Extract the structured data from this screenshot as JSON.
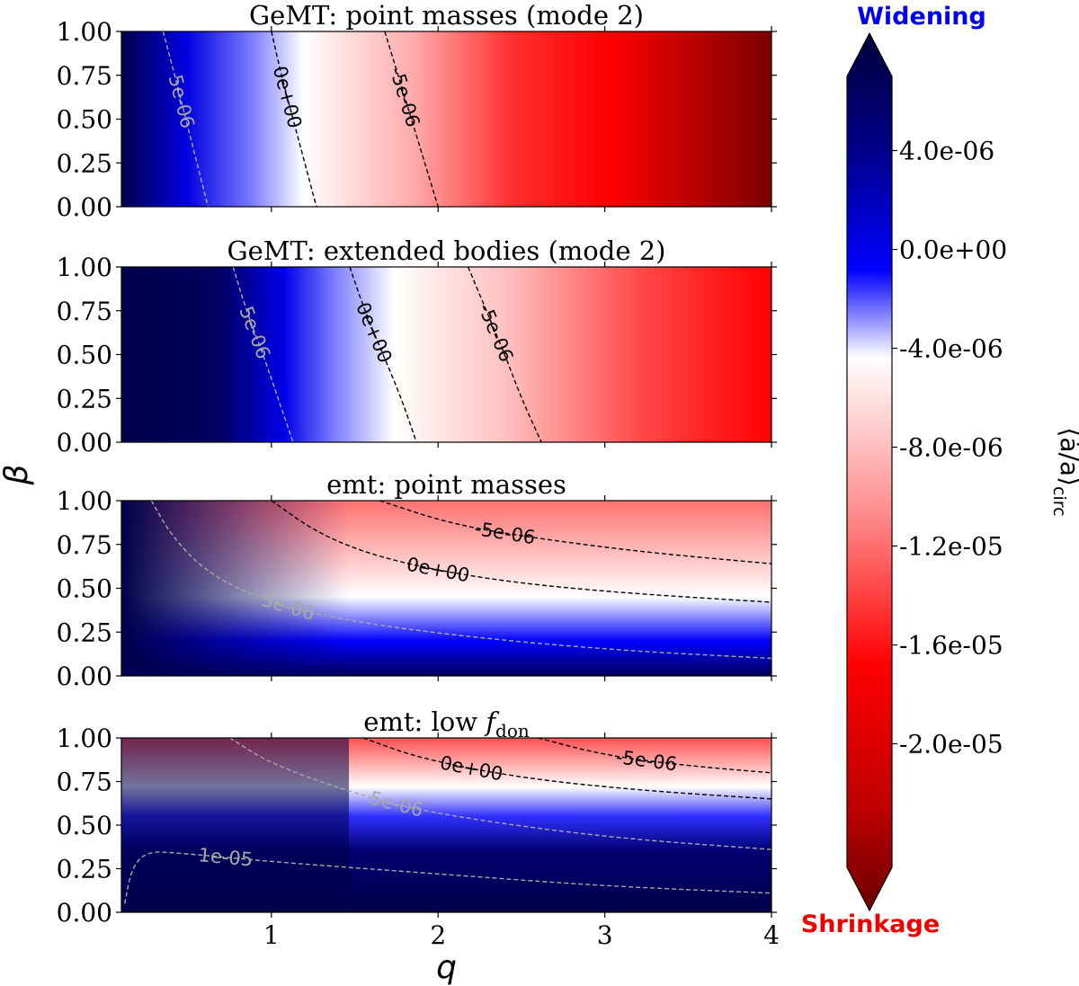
{
  "figure": {
    "annotations": {
      "top": "Widening",
      "bottom": "Shrinkage"
    },
    "colors": {
      "widening": "#0000ee",
      "shrinkage": "#ee0000",
      "contour_zero": "#000000",
      "contour_positive": "#a8a8a8"
    }
  },
  "chart_data": [
    {
      "type": "heatmap",
      "title": "GeMT: point masses (mode 2)",
      "xlim": [
        0.1,
        4
      ],
      "ylim": [
        0,
        1
      ],
      "yticks": [
        "0.00",
        "0.25",
        "0.50",
        "0.75",
        "1.00"
      ],
      "xticks": [],
      "contours": [
        {
          "level": "5e-06",
          "points": [
            [
              0.35,
              1.0
            ],
            [
              0.42,
              0.75
            ],
            [
              0.5,
              0.45
            ],
            [
              0.58,
              0.15
            ],
            [
              0.62,
              0.0
            ]
          ]
        },
        {
          "level": "0e+00",
          "points": [
            [
              1.0,
              1.0
            ],
            [
              1.06,
              0.75
            ],
            [
              1.13,
              0.5
            ],
            [
              1.2,
              0.25
            ],
            [
              1.27,
              0.0
            ]
          ]
        },
        {
          "level": "-5e-06",
          "points": [
            [
              1.68,
              1.0
            ],
            [
              1.76,
              0.75
            ],
            [
              1.84,
              0.5
            ],
            [
              1.92,
              0.25
            ],
            [
              2.0,
              0.0
            ]
          ]
        }
      ]
    },
    {
      "type": "heatmap",
      "title": "GeMT: extended bodies (mode 2)",
      "xlim": [
        0.1,
        4
      ],
      "ylim": [
        0,
        1
      ],
      "yticks": [
        "0.00",
        "0.25",
        "0.50",
        "0.75",
        "1.00"
      ],
      "xticks": [],
      "contours": [
        {
          "level": "5e-06",
          "points": [
            [
              0.77,
              1.0
            ],
            [
              0.85,
              0.75
            ],
            [
              0.95,
              0.5
            ],
            [
              1.04,
              0.25
            ],
            [
              1.13,
              0.0
            ]
          ]
        },
        {
          "level": "0e+00",
          "points": [
            [
              1.47,
              1.0
            ],
            [
              1.56,
              0.75
            ],
            [
              1.67,
              0.5
            ],
            [
              1.78,
              0.25
            ],
            [
              1.87,
              0.0
            ]
          ]
        },
        {
          "level": "-5e-06",
          "points": [
            [
              2.18,
              1.0
            ],
            [
              2.29,
              0.75
            ],
            [
              2.4,
              0.5
            ],
            [
              2.5,
              0.25
            ],
            [
              2.62,
              0.0
            ]
          ]
        }
      ]
    },
    {
      "type": "heatmap",
      "title": "emt: point masses",
      "xlim": [
        0.1,
        4
      ],
      "ylim": [
        0,
        1
      ],
      "yticks": [
        "0.00",
        "0.25",
        "0.50",
        "0.75",
        "1.00"
      ],
      "xticks": [],
      "contours": [
        {
          "level": "5e-06",
          "points": [
            [
              0.28,
              1.0
            ],
            [
              0.4,
              0.8
            ],
            [
              0.6,
              0.6
            ],
            [
              0.9,
              0.45
            ],
            [
              1.3,
              0.34
            ],
            [
              2.0,
              0.24
            ],
            [
              3.0,
              0.15
            ],
            [
              4.0,
              0.1
            ]
          ]
        },
        {
          "level": "0e+00",
          "points": [
            [
              1.0,
              1.0
            ],
            [
              1.3,
              0.8
            ],
            [
              1.7,
              0.66
            ],
            [
              2.3,
              0.55
            ],
            [
              3.0,
              0.48
            ],
            [
              4.0,
              0.42
            ]
          ]
        },
        {
          "level": "-5e-06",
          "points": [
            [
              1.65,
              1.0
            ],
            [
              2.1,
              0.86
            ],
            [
              2.7,
              0.77
            ],
            [
              3.3,
              0.7
            ],
            [
              4.0,
              0.64
            ]
          ]
        }
      ]
    },
    {
      "type": "heatmap",
      "title_main": "emt: low ",
      "title_var": "f",
      "title_sub": "don",
      "xlim": [
        0.1,
        4
      ],
      "ylim": [
        0,
        1
      ],
      "yticks": [
        "0.00",
        "0.25",
        "0.50",
        "0.75",
        "1.00"
      ],
      "xticks": [
        "1",
        "2",
        "3",
        "4"
      ],
      "xlabel": "q",
      "contours": [
        {
          "level": "1e-05",
          "points": [
            [
              0.12,
              0.05
            ],
            [
              0.16,
              0.25
            ],
            [
              0.25,
              0.35
            ],
            [
              0.45,
              0.34
            ],
            [
              1.0,
              0.29
            ],
            [
              2.0,
              0.22
            ],
            [
              3.0,
              0.15
            ],
            [
              4.0,
              0.11
            ]
          ]
        },
        {
          "level": "5e-06",
          "points": [
            [
              0.75,
              1.0
            ],
            [
              1.0,
              0.85
            ],
            [
              1.5,
              0.68
            ],
            [
              2.0,
              0.56
            ],
            [
              3.0,
              0.43
            ],
            [
              4.0,
              0.36
            ]
          ]
        },
        {
          "level": "0e+00",
          "points": [
            [
              1.55,
              1.0
            ],
            [
              1.9,
              0.88
            ],
            [
              2.5,
              0.77
            ],
            [
              3.2,
              0.7
            ],
            [
              4.0,
              0.65
            ]
          ]
        },
        {
          "level": "-5e-06",
          "points": [
            [
              2.6,
              1.0
            ],
            [
              3.0,
              0.9
            ],
            [
              3.5,
              0.84
            ],
            [
              4.0,
              0.8
            ]
          ]
        }
      ]
    }
  ],
  "shared": {
    "ylabel": "β"
  },
  "colorbar": {
    "label_main": "⟨ȧ/a⟩",
    "label_sub": "circ",
    "ticks": [
      "4.0e-06",
      "0.0e+00",
      "-4.0e-06",
      "-8.0e-06",
      "-1.2e-05",
      "-1.6e-05",
      "-2.0e-05"
    ],
    "tick_values": [
      4e-06,
      0,
      -4e-06,
      -8e-06,
      -1.2e-05,
      -1.6e-05,
      -2e-05
    ],
    "range": [
      -2.5e-05,
      7e-06
    ]
  }
}
